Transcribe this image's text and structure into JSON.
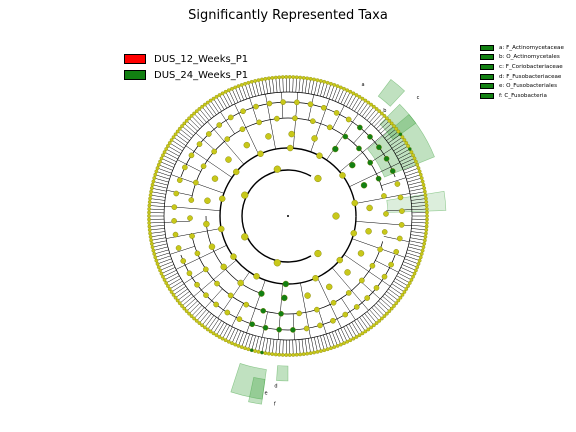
{
  "title": "Significantly Represented Taxa",
  "legend": [
    {
      "label": "DUS_12_Weeks_P1",
      "color": "#ff0000"
    },
    {
      "label": "DUS_24_Weeks_P1",
      "color": "#128012"
    }
  ],
  "clade_legend": [
    {
      "label": "a: F_Actinomycetaceae"
    },
    {
      "label": "b: O_Actinomycetales"
    },
    {
      "label": "c: F_Coriobacteriaceae"
    },
    {
      "label": "d: F_Fusobacteriaceae"
    },
    {
      "label": "e: O_Fusobacteriales"
    },
    {
      "label": "f: C_Fusobacteria"
    }
  ],
  "highlight_labels": [
    "a",
    "b",
    "c",
    "d",
    "e",
    "f"
  ],
  "colors": {
    "node": "#c8c81a",
    "node_stroke": "#7a7a00",
    "significant": "#128012",
    "highlight_fill": "#3ba13b",
    "edge": "#000000"
  }
}
